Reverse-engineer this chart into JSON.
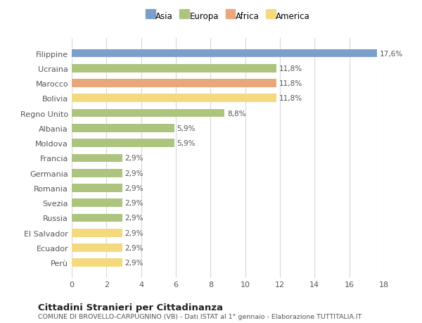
{
  "countries": [
    "Filippine",
    "Ucraina",
    "Marocco",
    "Bolivia",
    "Regno Unito",
    "Albania",
    "Moldova",
    "Francia",
    "Germania",
    "Romania",
    "Svezia",
    "Russia",
    "El Salvador",
    "Ecuador",
    "Perù"
  ],
  "values": [
    17.6,
    11.8,
    11.8,
    11.8,
    8.8,
    5.9,
    5.9,
    2.9,
    2.9,
    2.9,
    2.9,
    2.9,
    2.9,
    2.9,
    2.9
  ],
  "labels": [
    "17,6%",
    "11,8%",
    "11,8%",
    "11,8%",
    "8,8%",
    "5,9%",
    "5,9%",
    "2,9%",
    "2,9%",
    "2,9%",
    "2,9%",
    "2,9%",
    "2,9%",
    "2,9%",
    "2,9%"
  ],
  "colors": [
    "#7b9fc9",
    "#adc47f",
    "#e8a87c",
    "#f5d97e",
    "#adc47f",
    "#adc47f",
    "#adc47f",
    "#adc47f",
    "#adc47f",
    "#adc47f",
    "#adc47f",
    "#adc47f",
    "#f5d97e",
    "#f5d97e",
    "#f5d97e"
  ],
  "legend_labels": [
    "Asia",
    "Europa",
    "Africa",
    "America"
  ],
  "legend_colors": [
    "#7b9fc9",
    "#adc47f",
    "#e8a87c",
    "#f5d97e"
  ],
  "title": "Cittadini Stranieri per Cittadinanza",
  "subtitle": "COMUNE DI BROVELLO-CARPUGNINO (VB) - Dati ISTAT al 1° gennaio - Elaborazione TUTTITALIA.IT",
  "xlim": [
    0,
    18
  ],
  "xticks": [
    0,
    2,
    4,
    6,
    8,
    10,
    12,
    14,
    16,
    18
  ],
  "bg_color": "#ffffff",
  "grid_color": "#d8d8d8",
  "bar_height": 0.55
}
